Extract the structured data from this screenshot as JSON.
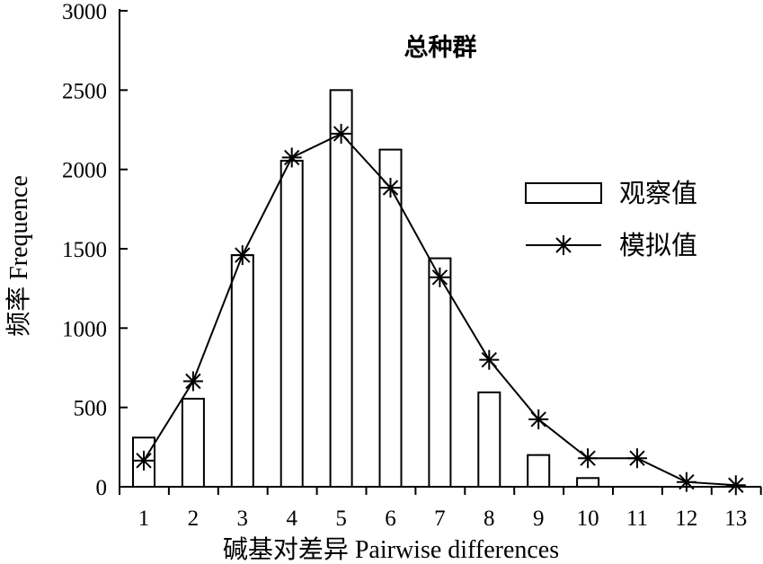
{
  "chart_data": {
    "type": "bar",
    "title": "总种群",
    "xlabel": "碱基对差异 Pairwise differences",
    "ylabel": "频率 Frequence",
    "categories": [
      "1",
      "2",
      "3",
      "4",
      "5",
      "6",
      "7",
      "8",
      "9",
      "10",
      "11",
      "12",
      "13"
    ],
    "ylim": [
      0,
      3000
    ],
    "yticks": [
      0,
      500,
      1000,
      1500,
      2000,
      2500,
      3000
    ],
    "grid": false,
    "legend_position": "right",
    "series": [
      {
        "name": "观察值",
        "type": "bar",
        "values": [
          310,
          555,
          1460,
          2055,
          2500,
          2125,
          1440,
          595,
          200,
          55,
          0,
          0,
          0
        ]
      },
      {
        "name": "模拟值",
        "type": "line",
        "marker": "asterisk",
        "values": [
          165,
          665,
          1460,
          2075,
          2225,
          1885,
          1320,
          800,
          425,
          180,
          180,
          30,
          10
        ]
      }
    ],
    "colors": {
      "bar_fill": "#ffffff",
      "stroke": "#000000"
    }
  }
}
